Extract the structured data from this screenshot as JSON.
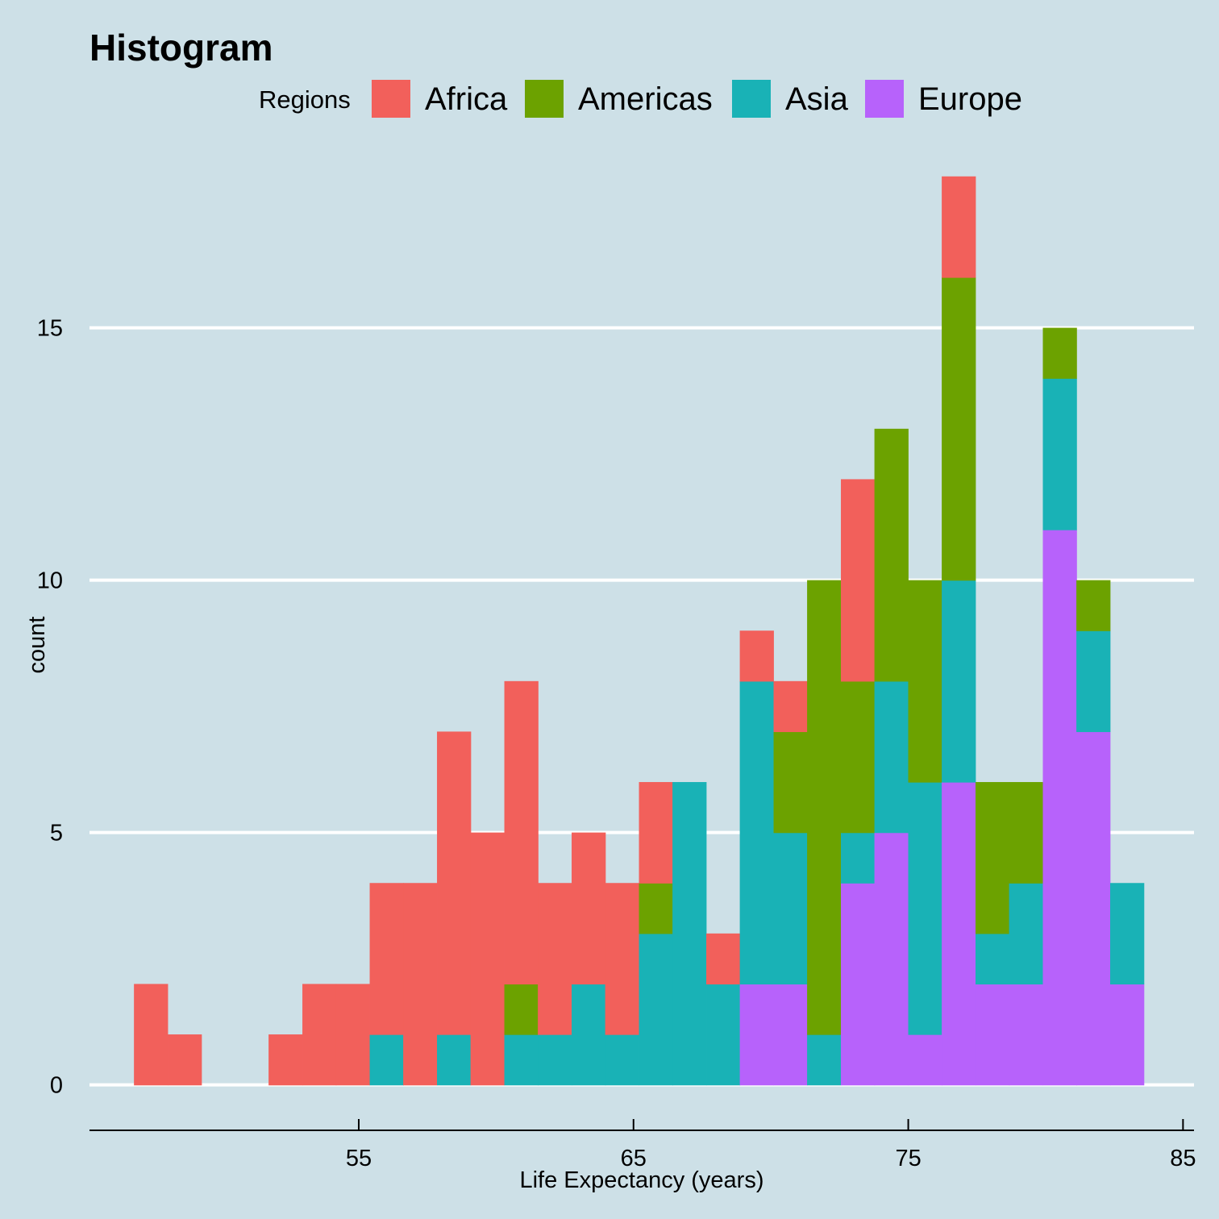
{
  "chart_data": {
    "type": "bar",
    "stacked": true,
    "title": "Histogram",
    "xlabel": "Life Expectancy (years)",
    "ylabel": "count",
    "legend_title": "Regions",
    "legend_position": "top",
    "grid": "horizontal",
    "xlim": [
      45.2,
      85.4
    ],
    "ylim": [
      -0.9,
      18.3
    ],
    "x_ticks": [
      55,
      65,
      75,
      85
    ],
    "y_ticks": [
      0,
      5,
      10,
      15
    ],
    "bins": [
      47.43,
      48.66,
      49.88,
      51.11,
      52.33,
      53.56,
      54.78,
      56.01,
      57.23,
      58.46,
      59.68,
      60.91,
      62.13,
      63.36,
      64.58,
      65.81,
      67.03,
      68.26,
      69.48,
      70.71,
      71.93,
      73.16,
      74.38,
      75.61,
      76.83,
      78.06,
      79.28,
      80.51,
      81.73,
      82.96
    ],
    "bin_width": 1.2235,
    "series": [
      {
        "name": "Europe",
        "color": "#b762fb",
        "values": [
          0,
          0,
          0,
          0,
          0,
          0,
          0,
          0,
          0,
          0,
          0,
          0,
          0,
          0,
          0,
          0,
          0,
          0,
          2,
          2,
          0,
          4,
          5,
          1,
          6,
          2,
          2,
          11,
          7,
          2
        ]
      },
      {
        "name": "Asia",
        "color": "#19b2b6",
        "values": [
          0,
          0,
          0,
          0,
          0,
          0,
          0,
          1,
          0,
          1,
          0,
          1,
          1,
          2,
          1,
          3,
          6,
          2,
          6,
          3,
          1,
          1,
          3,
          5,
          4,
          1,
          2,
          3,
          2,
          2
        ]
      },
      {
        "name": "Americas",
        "color": "#6ca200",
        "values": [
          0,
          0,
          0,
          0,
          0,
          0,
          0,
          0,
          0,
          0,
          0,
          1,
          0,
          0,
          0,
          1,
          0,
          0,
          0,
          2,
          9,
          3,
          5,
          4,
          6,
          3,
          2,
          1,
          1,
          0
        ]
      },
      {
        "name": "Africa",
        "color": "#f2605b",
        "values": [
          2,
          1,
          0,
          0,
          1,
          2,
          2,
          3,
          4,
          6,
          5,
          6,
          3,
          3,
          3,
          2,
          0,
          1,
          1,
          1,
          0,
          4,
          0,
          0,
          2,
          0,
          0,
          0,
          0,
          0
        ]
      }
    ],
    "legend_order": [
      "Africa",
      "Americas",
      "Asia",
      "Europe"
    ]
  }
}
